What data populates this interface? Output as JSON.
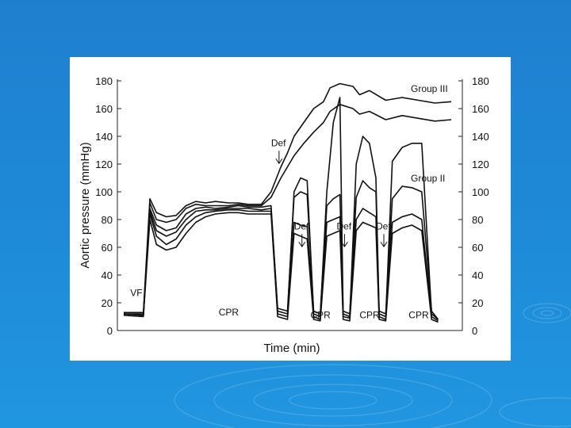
{
  "chart_data": {
    "type": "line",
    "ylabel": "Aortic pressure (mmHg)",
    "xlabel": "Time (min)",
    "ylim": [
      0,
      180
    ],
    "y_ticks": [
      0,
      20,
      40,
      60,
      80,
      100,
      120,
      140,
      160,
      180
    ],
    "right_axis_ticks": [
      0,
      20,
      40,
      60,
      80,
      100,
      120,
      140,
      160,
      180
    ],
    "x_units": "relative time (0-100)",
    "x_range": [
      0,
      100
    ],
    "grid": false,
    "legend": "inline labels",
    "series_labels": [
      "Group III",
      "Group II"
    ],
    "annotations": [
      {
        "text": "VF",
        "x": 2,
        "y": 25
      },
      {
        "text": "CPR",
        "x": 29,
        "y": 11
      },
      {
        "text": "CPR",
        "x": 57,
        "y": 9
      },
      {
        "text": "CPR",
        "x": 72,
        "y": 9
      },
      {
        "text": "CPR",
        "x": 87,
        "y": 9
      },
      {
        "text": "Def",
        "x": 45,
        "y": 133,
        "arrow": true
      },
      {
        "text": "Def",
        "x": 52,
        "y": 73,
        "arrow": true
      },
      {
        "text": "Def",
        "x": 65,
        "y": 73,
        "arrow": true
      },
      {
        "text": "Def",
        "x": 77,
        "y": 73,
        "arrow": true
      }
    ],
    "series": [
      {
        "label_ref": "Group III",
        "points": [
          [
            0,
            13
          ],
          [
            6,
            13
          ],
          [
            8,
            95
          ],
          [
            10,
            85
          ],
          [
            13,
            82
          ],
          [
            16,
            83
          ],
          [
            19,
            90
          ],
          [
            22,
            93
          ],
          [
            25,
            92
          ],
          [
            28,
            93
          ],
          [
            32,
            92
          ],
          [
            35,
            92
          ],
          [
            38,
            91
          ],
          [
            42,
            91
          ],
          [
            45,
            100
          ],
          [
            48,
            118
          ],
          [
            50,
            128
          ],
          [
            52,
            140
          ],
          [
            55,
            150
          ],
          [
            58,
            160
          ],
          [
            61,
            165
          ],
          [
            63,
            175
          ],
          [
            66,
            178
          ],
          [
            70,
            176
          ],
          [
            72,
            170
          ],
          [
            75,
            173
          ],
          [
            80,
            166
          ],
          [
            85,
            168
          ],
          [
            90,
            166
          ],
          [
            95,
            164
          ],
          [
            100,
            165
          ]
        ]
      },
      {
        "label_ref": "",
        "points": [
          [
            0,
            12
          ],
          [
            6,
            12
          ],
          [
            8,
            92
          ],
          [
            10,
            80
          ],
          [
            13,
            78
          ],
          [
            16,
            80
          ],
          [
            19,
            88
          ],
          [
            22,
            91
          ],
          [
            25,
            90
          ],
          [
            28,
            90
          ],
          [
            32,
            90
          ],
          [
            35,
            91
          ],
          [
            38,
            90
          ],
          [
            42,
            90
          ],
          [
            45,
            96
          ],
          [
            48,
            110
          ],
          [
            50,
            118
          ],
          [
            52,
            126
          ],
          [
            55,
            135
          ],
          [
            58,
            143
          ],
          [
            61,
            150
          ],
          [
            63,
            158
          ],
          [
            66,
            163
          ],
          [
            70,
            160
          ],
          [
            72,
            156
          ],
          [
            75,
            158
          ],
          [
            80,
            152
          ],
          [
            85,
            155
          ],
          [
            90,
            153
          ],
          [
            95,
            151
          ],
          [
            100,
            152
          ]
        ]
      },
      {
        "label_ref": "",
        "points": [
          [
            0,
            12
          ],
          [
            6,
            11
          ],
          [
            8,
            88
          ],
          [
            10,
            76
          ],
          [
            13,
            72
          ],
          [
            16,
            74
          ],
          [
            19,
            84
          ],
          [
            22,
            88
          ],
          [
            25,
            89
          ],
          [
            28,
            88
          ],
          [
            32,
            89
          ],
          [
            35,
            90
          ],
          [
            38,
            89
          ],
          [
            42,
            89
          ],
          [
            45,
            90
          ],
          [
            47,
            14
          ],
          [
            50,
            12
          ],
          [
            52,
            100
          ],
          [
            54,
            110
          ],
          [
            56,
            108
          ],
          [
            58,
            12
          ],
          [
            60,
            10
          ],
          [
            62,
            100
          ],
          [
            64,
            150
          ],
          [
            66,
            168
          ],
          [
            67,
            12
          ],
          [
            69,
            10
          ],
          [
            71,
            120
          ],
          [
            73,
            140
          ],
          [
            75,
            135
          ],
          [
            77,
            110
          ],
          [
            78,
            12
          ],
          [
            80,
            10
          ],
          [
            82,
            122
          ],
          [
            85,
            132
          ],
          [
            88,
            135
          ],
          [
            91,
            135
          ],
          [
            94,
            12
          ],
          [
            96,
            8
          ]
        ]
      },
      {
        "label_ref": "Group II",
        "points": [
          [
            0,
            12
          ],
          [
            6,
            11
          ],
          [
            8,
            86
          ],
          [
            10,
            72
          ],
          [
            13,
            68
          ],
          [
            16,
            71
          ],
          [
            19,
            80
          ],
          [
            22,
            86
          ],
          [
            25,
            87
          ],
          [
            28,
            87
          ],
          [
            32,
            88
          ],
          [
            35,
            88
          ],
          [
            38,
            88
          ],
          [
            42,
            87
          ],
          [
            45,
            88
          ],
          [
            47,
            16
          ],
          [
            50,
            14
          ],
          [
            52,
            96
          ],
          [
            54,
            100
          ],
          [
            56,
            98
          ],
          [
            58,
            14
          ],
          [
            60,
            12
          ],
          [
            62,
            90
          ],
          [
            64,
            95
          ],
          [
            66,
            98
          ],
          [
            67,
            14
          ],
          [
            69,
            12
          ],
          [
            71,
            96
          ],
          [
            73,
            108
          ],
          [
            75,
            103
          ],
          [
            77,
            100
          ],
          [
            78,
            14
          ],
          [
            80,
            12
          ],
          [
            82,
            95
          ],
          [
            85,
            104
          ],
          [
            88,
            103
          ],
          [
            91,
            100
          ],
          [
            94,
            14
          ],
          [
            96,
            8
          ]
        ]
      },
      {
        "label_ref": "",
        "points": [
          [
            0,
            12
          ],
          [
            6,
            11
          ],
          [
            8,
            84
          ],
          [
            10,
            68
          ],
          [
            13,
            62
          ],
          [
            16,
            66
          ],
          [
            19,
            76
          ],
          [
            22,
            82
          ],
          [
            25,
            85
          ],
          [
            28,
            86
          ],
          [
            32,
            87
          ],
          [
            35,
            87
          ],
          [
            38,
            86
          ],
          [
            42,
            86
          ],
          [
            45,
            86
          ],
          [
            47,
            12
          ],
          [
            50,
            10
          ],
          [
            52,
            78
          ],
          [
            54,
            76
          ],
          [
            56,
            75
          ],
          [
            58,
            10
          ],
          [
            60,
            8
          ],
          [
            62,
            78
          ],
          [
            64,
            80
          ],
          [
            66,
            82
          ],
          [
            67,
            10
          ],
          [
            69,
            9
          ],
          [
            71,
            80
          ],
          [
            73,
            88
          ],
          [
            75,
            85
          ],
          [
            77,
            82
          ],
          [
            78,
            10
          ],
          [
            80,
            8
          ],
          [
            82,
            78
          ],
          [
            85,
            82
          ],
          [
            88,
            84
          ],
          [
            91,
            80
          ],
          [
            94,
            10
          ],
          [
            96,
            7
          ]
        ]
      },
      {
        "label_ref": "",
        "points": [
          [
            0,
            11
          ],
          [
            6,
            10
          ],
          [
            8,
            80
          ],
          [
            10,
            62
          ],
          [
            13,
            58
          ],
          [
            16,
            60
          ],
          [
            19,
            70
          ],
          [
            22,
            78
          ],
          [
            25,
            82
          ],
          [
            28,
            84
          ],
          [
            32,
            85
          ],
          [
            35,
            85
          ],
          [
            38,
            84
          ],
          [
            42,
            84
          ],
          [
            45,
            84
          ],
          [
            47,
            10
          ],
          [
            50,
            8
          ],
          [
            52,
            70
          ],
          [
            54,
            68
          ],
          [
            56,
            66
          ],
          [
            58,
            8
          ],
          [
            60,
            7
          ],
          [
            62,
            68
          ],
          [
            64,
            70
          ],
          [
            66,
            72
          ],
          [
            67,
            8
          ],
          [
            69,
            7
          ],
          [
            71,
            72
          ],
          [
            73,
            78
          ],
          [
            75,
            76
          ],
          [
            77,
            74
          ],
          [
            78,
            8
          ],
          [
            80,
            7
          ],
          [
            82,
            70
          ],
          [
            85,
            74
          ],
          [
            88,
            76
          ],
          [
            91,
            72
          ],
          [
            94,
            8
          ],
          [
            96,
            6
          ]
        ]
      }
    ]
  }
}
